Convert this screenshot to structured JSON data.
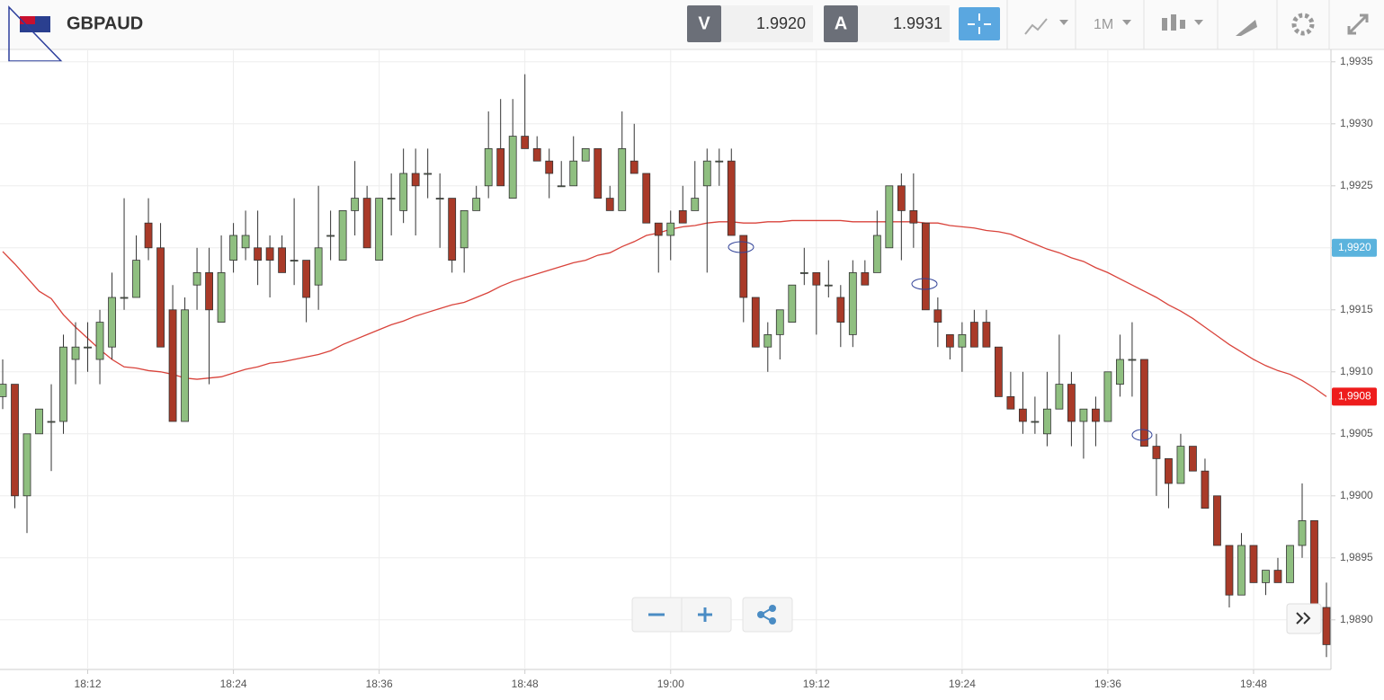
{
  "header": {
    "symbol": "GBPAUD",
    "bid": {
      "label": "V",
      "value": "1.9920"
    },
    "ask": {
      "label": "A",
      "value": "1.9931"
    },
    "timeframe": "1M"
  },
  "chart_data": {
    "type": "candlestick",
    "x": [
      "18:05",
      "18:06",
      "18:07",
      "18:08",
      "18:09",
      "18:10",
      "18:11",
      "18:12",
      "18:13",
      "18:14",
      "18:15",
      "18:16",
      "18:17",
      "18:18",
      "18:19",
      "18:20",
      "18:21",
      "18:22",
      "18:23",
      "18:24",
      "18:25",
      "18:26",
      "18:27",
      "18:28",
      "18:29",
      "18:30",
      "18:31",
      "18:32",
      "18:33",
      "18:34",
      "18:35",
      "18:36",
      "18:37",
      "18:38",
      "18:39",
      "18:40",
      "18:41",
      "18:42",
      "18:43",
      "18:44",
      "18:45",
      "18:46",
      "18:47",
      "18:48",
      "18:49",
      "18:50",
      "18:51",
      "18:52",
      "18:53",
      "18:54",
      "18:55",
      "18:56",
      "18:57",
      "18:58",
      "18:59",
      "19:00",
      "19:01",
      "19:02",
      "19:03",
      "19:04",
      "19:05",
      "19:06",
      "19:07",
      "19:08",
      "19:09",
      "19:10",
      "19:11",
      "19:12",
      "19:13",
      "19:14",
      "19:15",
      "19:16",
      "19:17",
      "19:18",
      "19:19",
      "19:20",
      "19:21",
      "19:22",
      "19:23",
      "19:24",
      "19:25",
      "19:26",
      "19:27",
      "19:28",
      "19:29",
      "19:30",
      "19:31",
      "19:32",
      "19:33",
      "19:34",
      "19:35",
      "19:36",
      "19:37",
      "19:38",
      "19:39",
      "19:40",
      "19:41",
      "19:42",
      "19:43",
      "19:44",
      "19:45",
      "19:46",
      "19:47",
      "19:48",
      "19:49",
      "19:50",
      "19:51",
      "19:52",
      "19:53",
      "19:54"
    ],
    "open": [
      1.9908,
      1.9909,
      1.99,
      1.9905,
      1.9906,
      1.9906,
      1.9911,
      1.9912,
      1.9911,
      1.9912,
      1.9916,
      1.9916,
      1.9922,
      1.992,
      1.9915,
      1.9906,
      1.9917,
      1.9918,
      1.9914,
      1.9919,
      1.992,
      1.992,
      1.992,
      1.992,
      1.9919,
      1.9919,
      1.9917,
      1.9921,
      1.9919,
      1.9923,
      1.9924,
      1.9919,
      1.9924,
      1.9923,
      1.9926,
      1.9926,
      1.9924,
      1.9924,
      1.992,
      1.9923,
      1.9925,
      1.9928,
      1.9924,
      1.9929,
      1.9928,
      1.9927,
      1.9925,
      1.9925,
      1.9927,
      1.9928,
      1.9924,
      1.9923,
      1.9927,
      1.9926,
      1.9922,
      1.9921,
      1.9923,
      1.9923,
      1.9925,
      1.9927,
      1.9927,
      1.9921,
      1.9916,
      1.9912,
      1.9913,
      1.9914,
      1.9918,
      1.9918,
      1.9917,
      1.9916,
      1.9913,
      1.9918,
      1.9918,
      1.992,
      1.9925,
      1.9923,
      1.9922,
      1.9915,
      1.9913,
      1.9912,
      1.9914,
      1.9914,
      1.9912,
      1.9908,
      1.9907,
      1.9906,
      1.9905,
      1.9907,
      1.9909,
      1.9906,
      1.9907,
      1.9906,
      1.9909,
      1.9911,
      1.9911,
      1.9904,
      1.9903,
      1.9901,
      1.9904,
      1.9902,
      1.99,
      1.9896,
      1.9892,
      1.9896,
      1.9893,
      1.9894,
      1.9893,
      1.9896,
      1.9898,
      1.9891
    ],
    "high": [
      1.9911,
      1.9909,
      1.9905,
      1.9907,
      1.9909,
      1.9913,
      1.9914,
      1.9914,
      1.9915,
      1.9918,
      1.9924,
      1.9921,
      1.9924,
      1.9922,
      1.9917,
      1.9916,
      1.992,
      1.992,
      1.9921,
      1.9922,
      1.9923,
      1.9923,
      1.9921,
      1.9921,
      1.9924,
      1.9919,
      1.9925,
      1.9923,
      1.9923,
      1.9927,
      1.9925,
      1.9924,
      1.9926,
      1.9928,
      1.9928,
      1.9928,
      1.9926,
      1.9924,
      1.9923,
      1.9925,
      1.9931,
      1.9932,
      1.9932,
      1.9934,
      1.9929,
      1.9928,
      1.9927,
      1.9929,
      1.9928,
      1.9928,
      1.9925,
      1.9931,
      1.993,
      1.9926,
      1.9922,
      1.9923,
      1.9925,
      1.9927,
      1.9928,
      1.9928,
      1.9928,
      1.9921,
      1.9916,
      1.9914,
      1.9915,
      1.9917,
      1.992,
      1.9918,
      1.9919,
      1.9917,
      1.9919,
      1.9919,
      1.9923,
      1.9925,
      1.9926,
      1.9926,
      1.9922,
      1.9916,
      1.9913,
      1.9914,
      1.9915,
      1.9915,
      1.9912,
      1.991,
      1.991,
      1.9908,
      1.991,
      1.9913,
      1.991,
      1.9907,
      1.9908,
      1.991,
      1.9913,
      1.9914,
      1.9911,
      1.9905,
      1.9903,
      1.9905,
      1.9904,
      1.9903,
      1.99,
      1.9896,
      1.9897,
      1.9896,
      1.9894,
      1.9895,
      1.9896,
      1.9901,
      1.9898,
      1.9893
    ],
    "low": [
      1.9907,
      1.9899,
      1.9897,
      1.9905,
      1.9902,
      1.9905,
      1.9909,
      1.991,
      1.9909,
      1.9911,
      1.9915,
      1.9916,
      1.9919,
      1.9912,
      1.9906,
      1.9906,
      1.9915,
      1.9909,
      1.9914,
      1.9918,
      1.9919,
      1.9917,
      1.9916,
      1.9918,
      1.9917,
      1.9914,
      1.9915,
      1.9919,
      1.9919,
      1.9921,
      1.992,
      1.9919,
      1.9921,
      1.9922,
      1.9921,
      1.9924,
      1.992,
      1.9918,
      1.9918,
      1.9923,
      1.9924,
      1.9925,
      1.9924,
      1.9928,
      1.9927,
      1.9924,
      1.9925,
      1.9925,
      1.9927,
      1.9924,
      1.9923,
      1.9923,
      1.9926,
      1.9922,
      1.9918,
      1.9919,
      1.9922,
      1.9923,
      1.9918,
      1.9925,
      1.9921,
      1.9914,
      1.9912,
      1.991,
      1.9911,
      1.9914,
      1.9917,
      1.9913,
      1.9916,
      1.9912,
      1.9912,
      1.9917,
      1.9918,
      1.992,
      1.9919,
      1.992,
      1.9915,
      1.9912,
      1.9911,
      1.991,
      1.9912,
      1.9912,
      1.9908,
      1.9907,
      1.9905,
      1.9905,
      1.9904,
      1.9907,
      1.9904,
      1.9903,
      1.9904,
      1.9906,
      1.9908,
      1.9908,
      1.9904,
      1.99,
      1.9899,
      1.9901,
      1.9902,
      1.9899,
      1.9896,
      1.9891,
      1.9892,
      1.9893,
      1.9892,
      1.9893,
      1.9893,
      1.9895,
      1.9891,
      1.9887
    ],
    "close": [
      1.9909,
      1.99,
      1.9905,
      1.9907,
      1.9906,
      1.9912,
      1.9912,
      1.9912,
      1.9914,
      1.9916,
      1.9916,
      1.9919,
      1.992,
      1.9912,
      1.9906,
      1.9915,
      1.9918,
      1.9915,
      1.9918,
      1.9921,
      1.9921,
      1.9919,
      1.9919,
      1.9918,
      1.9919,
      1.9916,
      1.992,
      1.9921,
      1.9923,
      1.9924,
      1.992,
      1.9924,
      1.9924,
      1.9926,
      1.9925,
      1.9926,
      1.9924,
      1.9919,
      1.9923,
      1.9924,
      1.9928,
      1.9925,
      1.9929,
      1.9928,
      1.9927,
      1.9926,
      1.9925,
      1.9927,
      1.9928,
      1.9924,
      1.9923,
      1.9928,
      1.9926,
      1.9922,
      1.9921,
      1.9922,
      1.9922,
      1.9924,
      1.9927,
      1.9927,
      1.9921,
      1.9916,
      1.9912,
      1.9913,
      1.9915,
      1.9917,
      1.9918,
      1.9917,
      1.9917,
      1.9914,
      1.9918,
      1.9917,
      1.9921,
      1.9925,
      1.9923,
      1.9922,
      1.9915,
      1.9914,
      1.9912,
      1.9913,
      1.9912,
      1.9912,
      1.9908,
      1.9907,
      1.9906,
      1.9906,
      1.9907,
      1.9909,
      1.9906,
      1.9907,
      1.9906,
      1.991,
      1.9911,
      1.9911,
      1.9904,
      1.9903,
      1.9901,
      1.9904,
      1.9902,
      1.9899,
      1.9896,
      1.9892,
      1.9896,
      1.9893,
      1.9894,
      1.9893,
      1.9896,
      1.9898,
      1.9891,
      1.9888
    ],
    "up_color": "#8fbf80",
    "down_color": "#a93a28",
    "lines": [
      {
        "color": "#d9433b",
        "values": [
          1.99197,
          1.99187,
          1.99176,
          1.99165,
          1.99159,
          1.99146,
          1.99136,
          1.99127,
          1.99118,
          1.9911,
          1.99104,
          1.99103,
          1.99101,
          1.991,
          1.99098,
          1.99095,
          1.99094,
          1.99095,
          1.99096,
          1.99099,
          1.99102,
          1.99104,
          1.99107,
          1.99108,
          1.9911,
          1.99112,
          1.99114,
          1.99117,
          1.99122,
          1.99126,
          1.9913,
          1.99134,
          1.99138,
          1.99141,
          1.99145,
          1.99148,
          1.99151,
          1.99154,
          1.99156,
          1.9916,
          1.99164,
          1.99169,
          1.99173,
          1.99176,
          1.99179,
          1.99182,
          1.99185,
          1.99188,
          1.9919,
          1.99194,
          1.99196,
          1.99201,
          1.99205,
          1.9921,
          1.99212,
          1.99215,
          1.99217,
          1.99218,
          1.9922,
          1.99221,
          1.99221,
          1.9922,
          1.9922,
          1.99221,
          1.99221,
          1.99222,
          1.99222,
          1.99222,
          1.99222,
          1.99222,
          1.99221,
          1.99221,
          1.99221,
          1.99221,
          1.99221,
          1.99221,
          1.9922,
          1.9922,
          1.99218,
          1.99217,
          1.99216,
          1.99214,
          1.99213,
          1.99211,
          1.99207,
          1.99203,
          1.99199,
          1.99196,
          1.99192,
          1.99189,
          1.99184,
          1.9918,
          1.99175,
          1.9917,
          1.99165,
          1.9916,
          1.99154,
          1.99149,
          1.99143,
          1.99136,
          1.99129,
          1.99122,
          1.99116,
          1.9911,
          1.99105,
          1.99101,
          1.99098,
          1.99093,
          1.99087,
          1.9908
        ]
      }
    ],
    "xlim": [
      "18:05",
      "19:54"
    ],
    "xticks": [
      "18:12",
      "18:24",
      "18:36",
      "18:48",
      "19:00",
      "19:12",
      "19:24",
      "19:36",
      "19:48"
    ],
    "ylim": [
      1.9886,
      1.9936
    ],
    "yticks": [
      {
        "value": 1.989,
        "label": "1,9890"
      },
      {
        "value": 1.9895,
        "label": "1,9895"
      },
      {
        "value": 1.99,
        "label": "1,9900"
      },
      {
        "value": 1.9905,
        "label": "1,9905"
      },
      {
        "value": 1.991,
        "label": "1,9910"
      },
      {
        "value": 1.9915,
        "label": "1,9915"
      },
      {
        "value": 1.992,
        "label": "1,9920"
      },
      {
        "value": 1.9925,
        "label": "1,9925"
      },
      {
        "value": 1.993,
        "label": "1,9930"
      },
      {
        "value": 1.9935,
        "label": "1,9935"
      }
    ],
    "grid": true,
    "price_tags": [
      {
        "value": 1.992,
        "label": "1,9920",
        "color": "#5bb3dd"
      },
      {
        "value": 1.9908,
        "label": "1,9908",
        "color": "#ee1c1c"
      }
    ]
  }
}
